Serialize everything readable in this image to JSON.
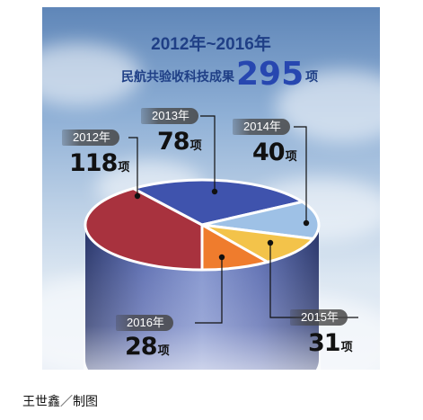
{
  "title": "2012年~2016年",
  "subtitle": {
    "prefix": "民航共验收科技成果",
    "total": "295",
    "unit": "项"
  },
  "credit": "王世鑫／制图",
  "chart_data": {
    "type": "pie",
    "unit": "项",
    "total": 295,
    "slices": [
      {
        "label": "2012年",
        "value": 118,
        "display": "118",
        "color": "#a8323e"
      },
      {
        "label": "2013年",
        "value": 78,
        "display": "78",
        "color": "#3f53ad"
      },
      {
        "label": "2014年",
        "value": 40,
        "display": "40",
        "color": "#9ec1e6"
      },
      {
        "label": "2015年",
        "value": 31,
        "display": "31",
        "color": "#f3c34a"
      },
      {
        "label": "2016年",
        "value": 28,
        "display": "28",
        "color": "#ef7c2d"
      }
    ]
  }
}
